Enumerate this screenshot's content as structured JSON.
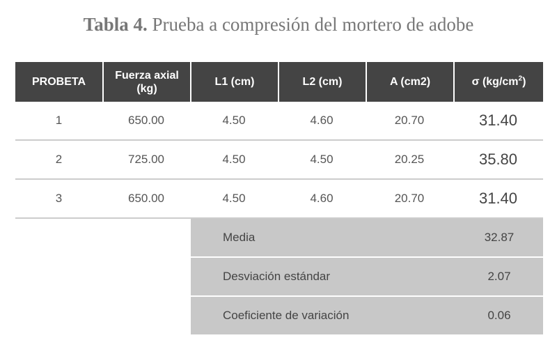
{
  "caption": {
    "label": "Tabla 4.",
    "text": " Prueba a compresión del mortero de adobe"
  },
  "table": {
    "headers": [
      {
        "line1": "PROBETA",
        "line2": ""
      },
      {
        "line1": "Fuerza axial",
        "line2": "(kg)"
      },
      {
        "line1": "L1 (cm)",
        "line2": ""
      },
      {
        "line1": "L2 (cm)",
        "line2": ""
      },
      {
        "line1": "A (cm2)",
        "line2": ""
      },
      {
        "line1": "σ (kg/cm",
        "sup": "2",
        "line2": ")"
      }
    ],
    "rows": [
      {
        "probeta": "1",
        "fuerza": "650.00",
        "l1": "4.50",
        "l2": "4.60",
        "a": "20.70",
        "sigma": "31.40"
      },
      {
        "probeta": "2",
        "fuerza": "725.00",
        "l1": "4.50",
        "l2": "4.50",
        "a": "20.25",
        "sigma": "35.80"
      },
      {
        "probeta": "3",
        "fuerza": "650.00",
        "l1": "4.50",
        "l2": "4.60",
        "a": "20.70",
        "sigma": "31.40"
      }
    ]
  },
  "stats": [
    {
      "label": "Media",
      "value": "32.87"
    },
    {
      "label": "Desviación estándar",
      "value": "2.07"
    },
    {
      "label": "Coeficiente de variación",
      "value": "0.06"
    }
  ]
}
